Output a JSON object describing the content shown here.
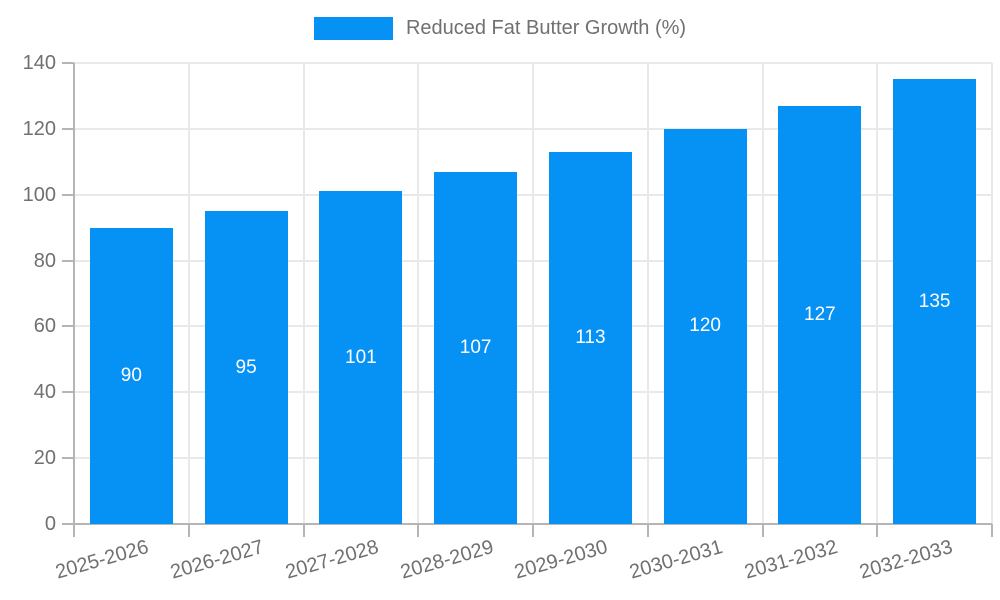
{
  "chart_data": {
    "type": "bar",
    "title": "",
    "legend": {
      "label": "Reduced Fat Butter Growth (%)",
      "position": "top-center"
    },
    "categories": [
      "2025-2026",
      "2026-2027",
      "2027-2028",
      "2028-2029",
      "2029-2030",
      "2030-2031",
      "2031-2032",
      "2032-2033"
    ],
    "series": [
      {
        "name": "Reduced Fat Butter Growth (%)",
        "values": [
          90,
          95,
          101,
          107,
          113,
          120,
          127,
          135
        ]
      }
    ],
    "value_labels": [
      "90",
      "95",
      "101",
      "107",
      "113",
      "120",
      "127",
      "135"
    ],
    "xlabel": "",
    "ylabel": "",
    "ylim": [
      0,
      140
    ],
    "yticks": [
      0,
      20,
      40,
      60,
      80,
      100,
      120,
      140
    ],
    "grid": "horizontal and vertical gridlines on",
    "x_label_rotation_deg": -16,
    "colors": {
      "bar": "#0691F5",
      "grid": "#e9e9e9",
      "axis": "#b5b5b5",
      "text": "#707070",
      "value_label": "#ffffff"
    }
  }
}
